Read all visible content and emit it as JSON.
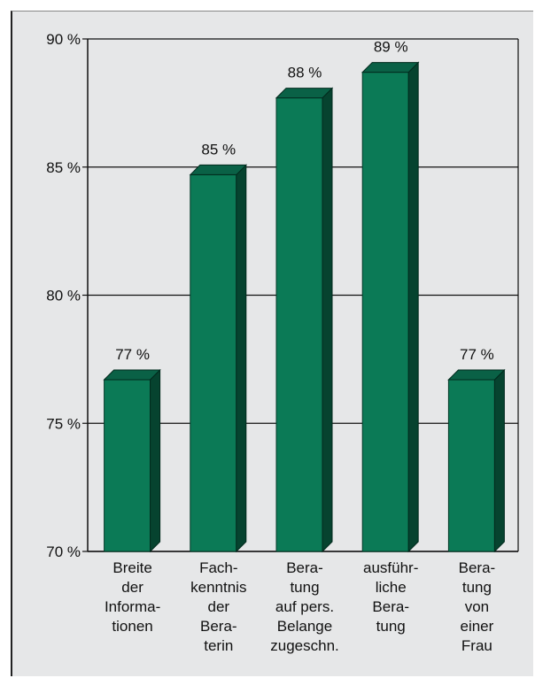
{
  "chart_data": {
    "type": "bar",
    "title": "",
    "xlabel": "",
    "ylabel": "",
    "ylim": [
      70,
      90
    ],
    "yticks": [
      70,
      75,
      80,
      85,
      90
    ],
    "ytick_labels": [
      "70 %",
      "75 %",
      "80 %",
      "85 %",
      "90 %"
    ],
    "grid": true,
    "legend": "none",
    "style": "3d-bars",
    "categories": [
      [
        "Breite",
        "der",
        "Informa-",
        "tionen"
      ],
      [
        "Fach-",
        "kenntnis",
        "der",
        "Bera-",
        "terin"
      ],
      [
        "Bera-",
        "tung",
        "auf pers.",
        "Belange",
        "zugeschn."
      ],
      [
        "ausführ-",
        "liche",
        "Bera-",
        "tung"
      ],
      [
        "Bera-",
        "tung",
        "von",
        "einer",
        "Frau"
      ]
    ],
    "values": [
      76.7,
      84.7,
      87.7,
      88.7,
      76.7
    ],
    "data_labels": [
      "77 %",
      "85 %",
      "88 %",
      "89 %",
      "77 %"
    ],
    "colors": {
      "bar_front": "#0b7a56",
      "bar_side": "#06432f",
      "bar_top": "#0a6146",
      "background": "#e6e7e8",
      "axis": "#111111"
    }
  }
}
